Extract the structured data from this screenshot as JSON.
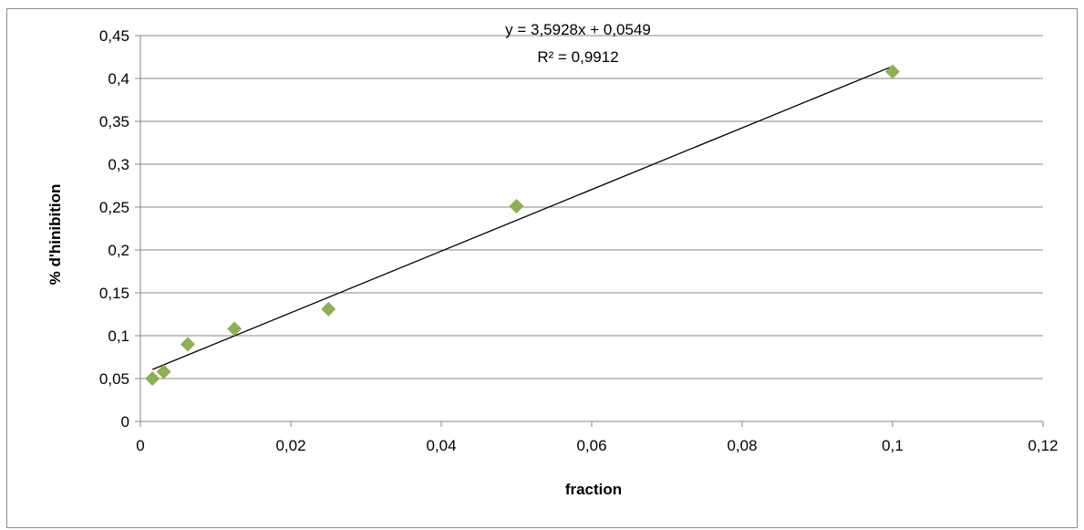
{
  "chart_data": {
    "type": "scatter",
    "title": "",
    "xlabel": "fraction",
    "ylabel": "% d'hinibition",
    "xlim": [
      0,
      0.12
    ],
    "ylim": [
      0,
      0.45
    ],
    "x_ticks": [
      0,
      0.02,
      0.04,
      0.06,
      0.08,
      0.1,
      0.12
    ],
    "x_tick_labels": [
      "0",
      "0,02",
      "0,04",
      "0,06",
      "0,08",
      "0,1",
      "0,12"
    ],
    "y_ticks": [
      0,
      0.05,
      0.1,
      0.15,
      0.2,
      0.25,
      0.3,
      0.35,
      0.4,
      0.45
    ],
    "y_tick_labels": [
      "0",
      "0,05",
      "0,1",
      "0,15",
      "0,2",
      "0,25",
      "0,3",
      "0,35",
      "0,4",
      "0,45"
    ],
    "grid": "horizontal",
    "legend": "none",
    "series": [
      {
        "marker": "diamond",
        "color": "#8db053",
        "points": [
          {
            "x": 0.0016,
            "y": 0.05
          },
          {
            "x": 0.0031,
            "y": 0.058
          },
          {
            "x": 0.0063,
            "y": 0.09
          },
          {
            "x": 0.0125,
            "y": 0.108
          },
          {
            "x": 0.025,
            "y": 0.131
          },
          {
            "x": 0.05,
            "y": 0.251
          },
          {
            "x": 0.1,
            "y": 0.408
          }
        ]
      }
    ],
    "trendline": {
      "type": "linear",
      "slope": 3.5928,
      "intercept": 0.0549,
      "x_range": [
        0.0016,
        0.1
      ],
      "color": "#000000",
      "equation_label": "y = 3,5928x + 0,0549",
      "r2_label": "R² = 0,9912"
    },
    "colors": {
      "grid": "#878787",
      "axis": "#878787",
      "border": "#8c8c8c"
    }
  }
}
